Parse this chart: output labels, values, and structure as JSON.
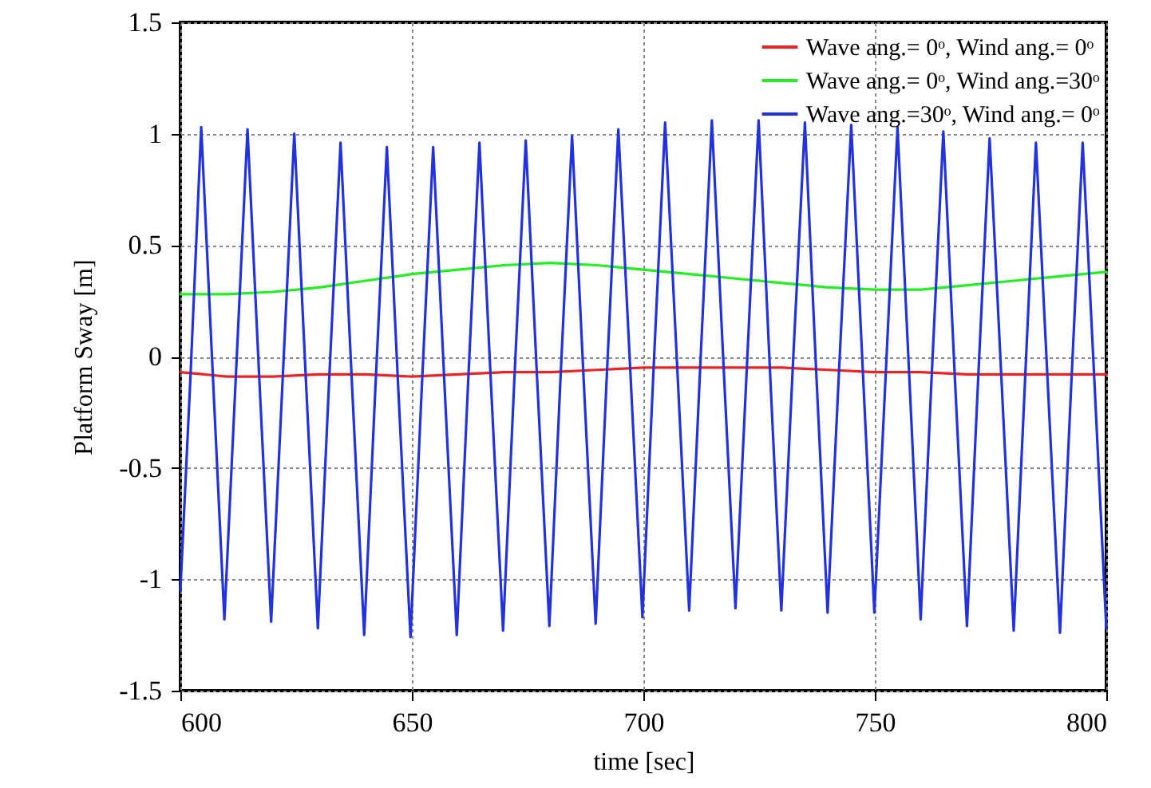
{
  "chart_data": {
    "type": "line",
    "xlabel": "time [sec]",
    "ylabel": "Platform Sway [m]",
    "xlim": [
      600,
      800
    ],
    "xticks": [
      600,
      650,
      700,
      750,
      800
    ],
    "ylim": [
      -1.5,
      1.5
    ],
    "yticks": [
      -1.5,
      -1,
      -0.5,
      0,
      0.5,
      1,
      1.5
    ],
    "grid": true,
    "legend": "top right",
    "line_style": "solid",
    "series": [
      {
        "name": "Wave ang.= 0ᵒ, Wind ang.= 0ᵒ",
        "color": "#ee2222",
        "x": [
          600,
          610,
          620,
          630,
          640,
          650,
          660,
          670,
          680,
          690,
          700,
          710,
          720,
          730,
          740,
          750,
          760,
          770,
          780,
          790,
          800
        ],
        "values": [
          -0.07,
          -0.09,
          -0.09,
          -0.08,
          -0.08,
          -0.09,
          -0.08,
          -0.07,
          -0.07,
          -0.06,
          -0.05,
          -0.05,
          -0.05,
          -0.05,
          -0.06,
          -0.07,
          -0.07,
          -0.08,
          -0.08,
          -0.08,
          -0.08
        ]
      },
      {
        "name": "Wave ang.= 0ᵒ, Wind ang.=30ᵒ",
        "color": "#22ee22",
        "x": [
          600,
          610,
          620,
          630,
          640,
          650,
          660,
          670,
          680,
          690,
          700,
          710,
          720,
          730,
          740,
          750,
          760,
          770,
          780,
          790,
          800
        ],
        "values": [
          0.28,
          0.28,
          0.29,
          0.31,
          0.34,
          0.37,
          0.39,
          0.41,
          0.42,
          0.41,
          0.39,
          0.37,
          0.35,
          0.33,
          0.31,
          0.3,
          0.3,
          0.32,
          0.34,
          0.36,
          0.38
        ]
      },
      {
        "name": "Wave ang.=30ᵒ, Wind ang.= 0ᵒ",
        "color": "#2233dd",
        "x": [
          600,
          602.2,
          604.5,
          607,
          609.5,
          612,
          614.5,
          617,
          619.6,
          622.1,
          624.6,
          627.1,
          629.7,
          632.1,
          634.6,
          637.1,
          639.7,
          642.1,
          644.6,
          647.1,
          649.7,
          652.1,
          654.6,
          657.1,
          659.7,
          662.1,
          664.6,
          667.1,
          669.7,
          672.1,
          674.6,
          677.1,
          679.7,
          682.1,
          684.6,
          687.1,
          689.7,
          692.1,
          694.6,
          697.2,
          699.8,
          702.2,
          704.7,
          707.3,
          709.9,
          712.3,
          714.8,
          717.3,
          719.9,
          722.4,
          724.9,
          727.3,
          729.8,
          732.3,
          734.9,
          737.3,
          739.8,
          742.3,
          744.9,
          747.4,
          749.9,
          752.4,
          754.9,
          757.4,
          759.9,
          762.3,
          764.8,
          767.3,
          769.9,
          772.3,
          774.8,
          777.4,
          780,
          782.4,
          784.8,
          787.4,
          790,
          792.4,
          794.9,
          797.5,
          800
        ],
        "values": [
          -1.05,
          -0.08,
          1.03,
          -0.08,
          -1.18,
          -0.08,
          1.02,
          -0.08,
          -1.19,
          -0.1,
          1.0,
          -0.1,
          -1.22,
          -0.12,
          0.96,
          -0.14,
          -1.25,
          -0.15,
          0.94,
          -0.16,
          -1.26,
          -0.16,
          0.94,
          -0.15,
          -1.25,
          -0.14,
          0.96,
          -0.13,
          -1.23,
          -0.12,
          0.97,
          -0.12,
          -1.21,
          -0.1,
          0.99,
          -0.1,
          -1.2,
          -0.09,
          1.02,
          -0.07,
          -1.17,
          -0.06,
          1.05,
          -0.04,
          -1.14,
          -0.04,
          1.06,
          -0.03,
          -1.13,
          -0.03,
          1.06,
          -0.04,
          -1.14,
          -0.04,
          1.05,
          -0.05,
          -1.15,
          -0.05,
          1.04,
          -0.06,
          -1.15,
          -0.06,
          1.03,
          -0.07,
          -1.18,
          -0.08,
          1.01,
          -0.1,
          -1.21,
          -0.11,
          0.98,
          -0.12,
          -1.23,
          -0.13,
          0.96,
          -0.14,
          -1.24,
          -0.14,
          0.96,
          -0.14,
          -1.22
        ]
      }
    ]
  }
}
